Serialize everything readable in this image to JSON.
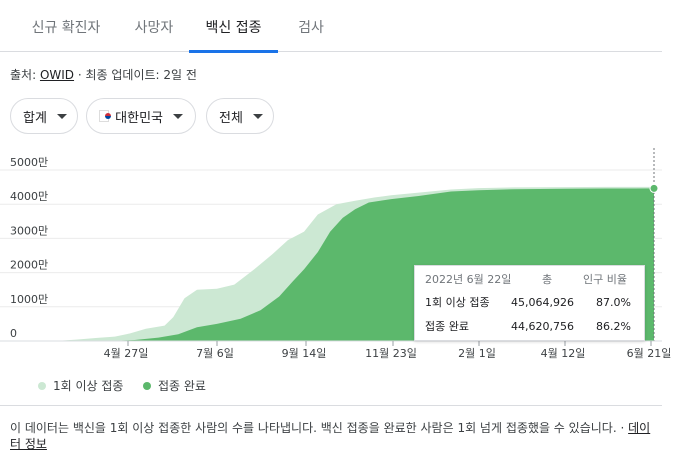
{
  "tabs": [
    {
      "label": "신규 확진자",
      "active": false
    },
    {
      "label": "사망자",
      "active": false
    },
    {
      "label": "백신 접종",
      "active": true
    },
    {
      "label": "검사",
      "active": false
    }
  ],
  "source": {
    "prefix": "출처: ",
    "link": "OWID",
    "suffix": " · 최종 업데이트: 2일 전"
  },
  "filters": {
    "type": "합계",
    "region": "대한민국",
    "range": "전체"
  },
  "colors": {
    "at_least_one": "#cce8d3",
    "fully": "#5cb86c",
    "accent": "#1a73e8"
  },
  "chart_data": {
    "type": "area",
    "y_ticks": [
      "0",
      "1000만",
      "2000만",
      "3000만",
      "4000만",
      "5000만"
    ],
    "ylim": [
      0,
      50000000
    ],
    "x_ticks": [
      "4월 27일",
      "7월 6일",
      "9월 14일",
      "11월 23일",
      "2월 1일",
      "4월 12일",
      "6월 21일"
    ],
    "x_start": "2021-02-26",
    "x_end": "2022-06-22",
    "series": [
      {
        "name": "1회 이상 접종",
        "points": [
          [
            "2021-02-26",
            0
          ],
          [
            "2021-03-15",
            400000
          ],
          [
            "2021-04-01",
            900000
          ],
          [
            "2021-04-15",
            1300000
          ],
          [
            "2021-04-27",
            2200000
          ],
          [
            "2021-05-10",
            3600000
          ],
          [
            "2021-05-25",
            4500000
          ],
          [
            "2021-06-01",
            7000000
          ],
          [
            "2021-06-10",
            12500000
          ],
          [
            "2021-06-20",
            15000000
          ],
          [
            "2021-07-06",
            15300000
          ],
          [
            "2021-07-20",
            16500000
          ],
          [
            "2021-08-05",
            21000000
          ],
          [
            "2021-08-20",
            25500000
          ],
          [
            "2021-09-01",
            29500000
          ],
          [
            "2021-09-14",
            32000000
          ],
          [
            "2021-09-25",
            37000000
          ],
          [
            "2021-10-10",
            40000000
          ],
          [
            "2021-10-25",
            41000000
          ],
          [
            "2021-11-10",
            42000000
          ],
          [
            "2021-11-23",
            42600000
          ],
          [
            "2021-12-15",
            43400000
          ],
          [
            "2022-01-10",
            44300000
          ],
          [
            "2022-02-01",
            44700000
          ],
          [
            "2022-03-01",
            44900000
          ],
          [
            "2022-04-12",
            45000000
          ],
          [
            "2022-05-15",
            45050000
          ],
          [
            "2022-06-22",
            45064926
          ]
        ]
      },
      {
        "name": "접종 완료",
        "points": [
          [
            "2021-02-26",
            0
          ],
          [
            "2021-04-01",
            0
          ],
          [
            "2021-04-15",
            100000
          ],
          [
            "2021-05-01",
            300000
          ],
          [
            "2021-05-20",
            1000000
          ],
          [
            "2021-06-05",
            2000000
          ],
          [
            "2021-06-20",
            4000000
          ],
          [
            "2021-07-06",
            5000000
          ],
          [
            "2021-07-25",
            6500000
          ],
          [
            "2021-08-10",
            9000000
          ],
          [
            "2021-08-25",
            13000000
          ],
          [
            "2021-09-05",
            17500000
          ],
          [
            "2021-09-14",
            21000000
          ],
          [
            "2021-09-25",
            26000000
          ],
          [
            "2021-10-05",
            32000000
          ],
          [
            "2021-10-15",
            36000000
          ],
          [
            "2021-10-25",
            38500000
          ],
          [
            "2021-11-05",
            40500000
          ],
          [
            "2021-11-23",
            41500000
          ],
          [
            "2021-12-15",
            42400000
          ],
          [
            "2022-01-10",
            43700000
          ],
          [
            "2022-02-01",
            44100000
          ],
          [
            "2022-03-01",
            44400000
          ],
          [
            "2022-04-12",
            44500000
          ],
          [
            "2022-05-15",
            44580000
          ],
          [
            "2022-06-22",
            44620756
          ]
        ]
      }
    ],
    "tooltip": {
      "date": "2022년 6월 22일",
      "col_total": "총",
      "col_ratio": "인구 비율",
      "rows": [
        {
          "label": "1회 이상 접종",
          "total": "45,064,926",
          "ratio": "87.0%"
        },
        {
          "label": "접종 완료",
          "total": "44,620,756",
          "ratio": "86.2%"
        }
      ]
    }
  },
  "legend": [
    {
      "label": "1회 이상 접종"
    },
    {
      "label": "접종 완료"
    }
  ],
  "note": {
    "text": "이 데이터는 백신을 1회 이상 접종한 사람의 수를 나타냅니다. 백신 접종을 완료한 사람은 1회 넘게 접종했을 수 있습니다.",
    "separator": "·",
    "link": "데이터 정보"
  }
}
